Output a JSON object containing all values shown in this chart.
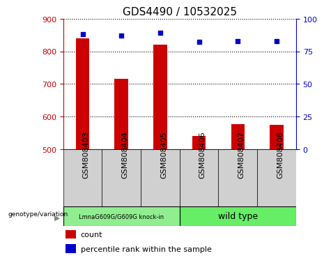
{
  "title": "GDS4490 / 10532025",
  "categories": [
    "GSM808403",
    "GSM808404",
    "GSM808405",
    "GSM808406",
    "GSM808407",
    "GSM808408"
  ],
  "bar_values": [
    840,
    715,
    820,
    540,
    578,
    575
  ],
  "percentile_values": [
    88,
    87,
    89,
    82,
    83,
    83
  ],
  "ylim_left": [
    500,
    900
  ],
  "ylim_right": [
    0,
    100
  ],
  "yticks_left": [
    500,
    600,
    700,
    800,
    900
  ],
  "yticks_right": [
    0,
    25,
    50,
    75,
    100
  ],
  "bar_color": "#cc0000",
  "dot_color": "#0000cc",
  "grid_color": "#000000",
  "label_bg": "#d0d0d0",
  "group1_label": "LmnaG609G/G609G knock-in",
  "group2_label": "wild type",
  "group1_color": "#90ee90",
  "group2_color": "#66ee66",
  "group1_indices": [
    0,
    1,
    2
  ],
  "group2_indices": [
    3,
    4,
    5
  ],
  "genotype_label": "genotype/variation",
  "legend_count": "count",
  "legend_percentile": "percentile rank within the sample",
  "title_fontsize": 11,
  "tick_fontsize": 8,
  "label_fontsize": 8
}
